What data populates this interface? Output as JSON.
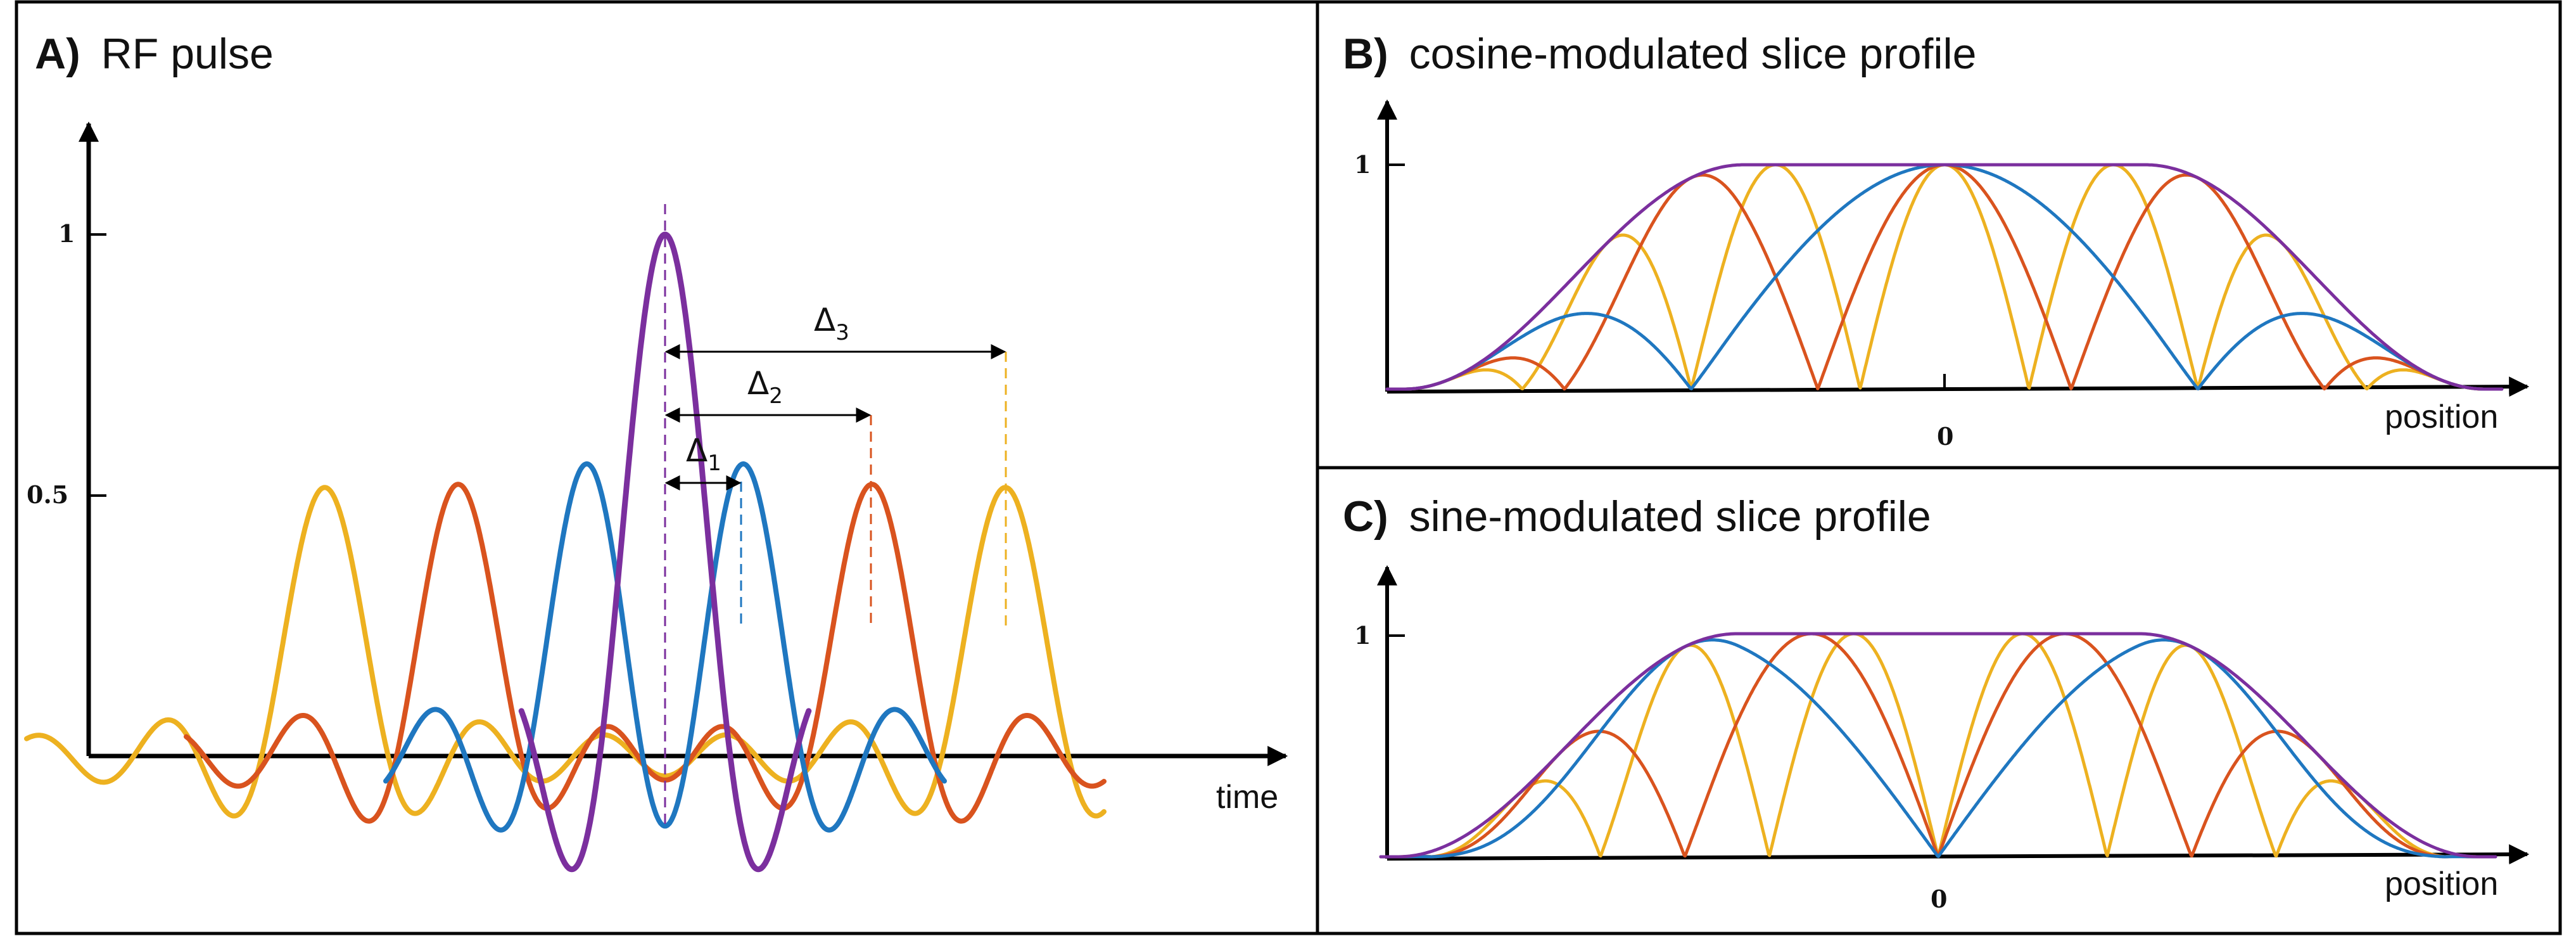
{
  "colors": {
    "purple": "#7b2f9e",
    "blue": "#1f77c0",
    "orange": "#d9531e",
    "yellow": "#edb120",
    "axis": "#000000",
    "frame": "#000000"
  },
  "panel_a": {
    "letter": "A)",
    "title": "RF pulse",
    "y_tick_1": "1",
    "y_tick_half": "0.5",
    "x_label": "time",
    "delta_symbol": "Δ",
    "delta1_sub": "1",
    "delta2_sub": "2",
    "delta3_sub": "3"
  },
  "panel_b": {
    "letter": "B)",
    "title": "cosine-modulated slice profile",
    "y_tick_1": "1",
    "x_tick_0": "0",
    "x_label": "position"
  },
  "panel_c": {
    "letter": "C)",
    "title": "sine-modulated slice profile",
    "y_tick_1": "1",
    "x_tick_0": "0",
    "x_label": "position"
  }
}
